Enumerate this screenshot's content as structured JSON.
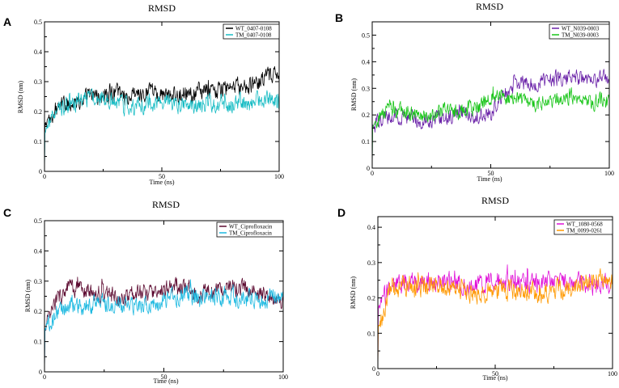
{
  "chart_data": [
    {
      "panel": "A",
      "type": "line",
      "title": "RMSD",
      "xlabel": "Time (ns)",
      "ylabel": "RMSD (nm)",
      "xlim": [
        0,
        100
      ],
      "ylim": [
        0,
        0.5
      ],
      "xticks": [
        0,
        50,
        100
      ],
      "yticks": [
        0,
        0.1,
        0.2,
        0.3,
        0.4,
        0.5
      ],
      "x_tick_labels": [
        "0",
        "50",
        "100"
      ],
      "y_tick_labels": [
        "0",
        "0.1",
        "0.2",
        "0.3",
        "0.4",
        "0.5"
      ],
      "legend_position": "top-right",
      "series": [
        {
          "name": "WT_0407-0108",
          "color": "#000000",
          "x": [
            0,
            5,
            10,
            15,
            20,
            25,
            30,
            35,
            40,
            45,
            50,
            55,
            60,
            65,
            70,
            75,
            80,
            85,
            90,
            95,
            100
          ],
          "values": [
            0.15,
            0.21,
            0.23,
            0.24,
            0.25,
            0.25,
            0.26,
            0.25,
            0.25,
            0.26,
            0.26,
            0.25,
            0.26,
            0.26,
            0.27,
            0.27,
            0.28,
            0.28,
            0.29,
            0.31,
            0.33
          ]
        },
        {
          "name": "TM_0407-0108",
          "color": "#17bcc4",
          "x": [
            0,
            5,
            10,
            15,
            20,
            25,
            30,
            35,
            40,
            45,
            50,
            55,
            60,
            65,
            70,
            75,
            80,
            85,
            90,
            95,
            100
          ],
          "values": [
            0.12,
            0.2,
            0.22,
            0.23,
            0.25,
            0.24,
            0.23,
            0.22,
            0.22,
            0.23,
            0.24,
            0.23,
            0.22,
            0.22,
            0.23,
            0.23,
            0.22,
            0.23,
            0.23,
            0.24,
            0.22
          ]
        }
      ]
    },
    {
      "panel": "B",
      "type": "line",
      "title": "RMSD",
      "xlabel": "Time (ns)",
      "ylabel": "RMSD (nm)",
      "xlim": [
        0,
        100
      ],
      "ylim": [
        0,
        0.55
      ],
      "xticks": [
        0,
        50,
        100
      ],
      "yticks": [
        0,
        0.1,
        0.2,
        0.3,
        0.4,
        0.5
      ],
      "x_tick_labels": [
        "0",
        "50",
        "100"
      ],
      "y_tick_labels": [
        "0",
        "0.1",
        "0.2",
        "0.3",
        "0.4",
        "0.5"
      ],
      "legend_position": "top-right",
      "series": [
        {
          "name": "WT_N039-0003",
          "color": "#6a22a8",
          "x": [
            0,
            5,
            10,
            15,
            20,
            25,
            30,
            35,
            40,
            45,
            50,
            55,
            60,
            65,
            70,
            75,
            80,
            85,
            90,
            95,
            100
          ],
          "values": [
            0.15,
            0.19,
            0.2,
            0.19,
            0.18,
            0.18,
            0.19,
            0.2,
            0.2,
            0.2,
            0.21,
            0.27,
            0.31,
            0.32,
            0.32,
            0.33,
            0.34,
            0.34,
            0.33,
            0.33,
            0.34
          ]
        },
        {
          "name": "TM_N039-0003",
          "color": "#19c519",
          "x": [
            0,
            5,
            10,
            15,
            20,
            25,
            30,
            35,
            40,
            45,
            50,
            55,
            60,
            65,
            70,
            75,
            80,
            85,
            90,
            95,
            100
          ],
          "values": [
            0.16,
            0.21,
            0.22,
            0.21,
            0.2,
            0.2,
            0.21,
            0.21,
            0.22,
            0.23,
            0.26,
            0.27,
            0.26,
            0.25,
            0.24,
            0.25,
            0.26,
            0.27,
            0.26,
            0.25,
            0.25
          ]
        }
      ]
    },
    {
      "panel": "C",
      "type": "line",
      "title": "RMSD",
      "xlabel": "Time (ns)",
      "ylabel": "RMSD (nm)",
      "xlim": [
        0,
        100
      ],
      "ylim": [
        0,
        0.5
      ],
      "xticks": [
        0,
        50,
        100
      ],
      "yticks": [
        0,
        0.1,
        0.2,
        0.3,
        0.4,
        0.5
      ],
      "x_tick_labels": [
        "0",
        "50",
        "100"
      ],
      "y_tick_labels": [
        "0",
        "0.1",
        "0.2",
        "0.3",
        "0.4",
        "0.5"
      ],
      "legend_position": "top-right",
      "series": [
        {
          "name": "WT_Ciprofloxacin",
          "color": "#5c0a30",
          "x": [
            0,
            5,
            10,
            15,
            20,
            25,
            30,
            35,
            40,
            45,
            50,
            55,
            60,
            65,
            70,
            75,
            80,
            85,
            90,
            95,
            100
          ],
          "values": [
            0.14,
            0.24,
            0.28,
            0.27,
            0.26,
            0.26,
            0.25,
            0.25,
            0.26,
            0.26,
            0.27,
            0.28,
            0.27,
            0.26,
            0.27,
            0.28,
            0.28,
            0.27,
            0.26,
            0.25,
            0.24
          ]
        },
        {
          "name": "TM_Ciprofloxacin",
          "color": "#1ab8e0",
          "x": [
            0,
            5,
            10,
            15,
            20,
            25,
            30,
            35,
            40,
            45,
            50,
            55,
            60,
            65,
            70,
            75,
            80,
            85,
            90,
            95,
            100
          ],
          "values": [
            0.13,
            0.2,
            0.21,
            0.22,
            0.22,
            0.23,
            0.22,
            0.22,
            0.22,
            0.23,
            0.24,
            0.25,
            0.25,
            0.24,
            0.25,
            0.25,
            0.24,
            0.24,
            0.23,
            0.25,
            0.26
          ]
        }
      ]
    },
    {
      "panel": "D",
      "type": "line",
      "title": "RMSD",
      "xlabel": "Time (ns)",
      "ylabel": "RMSD (nm)",
      "xlim": [
        0,
        100
      ],
      "ylim": [
        0,
        0.43
      ],
      "xticks": [
        0,
        50,
        100
      ],
      "yticks": [
        0,
        0.1,
        0.2,
        0.3,
        0.4
      ],
      "x_tick_labels": [
        "0",
        "50",
        "100"
      ],
      "y_tick_labels": [
        "0",
        "0.1",
        "0.2",
        "0.3",
        "0.4"
      ],
      "legend_position": "top-right",
      "series": [
        {
          "name": "WT_1080-0568",
          "color": "#e010d8",
          "x": [
            0,
            5,
            10,
            15,
            20,
            25,
            30,
            35,
            40,
            45,
            50,
            55,
            60,
            65,
            70,
            75,
            80,
            85,
            90,
            95,
            100
          ],
          "values": [
            0.16,
            0.23,
            0.24,
            0.24,
            0.25,
            0.24,
            0.24,
            0.24,
            0.23,
            0.24,
            0.25,
            0.24,
            0.24,
            0.24,
            0.24,
            0.25,
            0.24,
            0.24,
            0.24,
            0.24,
            0.24
          ]
        },
        {
          "name": "TM_0099-0261",
          "color": "#ff9900",
          "x": [
            0,
            5,
            10,
            15,
            20,
            25,
            30,
            35,
            40,
            45,
            50,
            55,
            60,
            65,
            70,
            75,
            80,
            85,
            90,
            95,
            100
          ],
          "values": [
            0.12,
            0.22,
            0.23,
            0.22,
            0.23,
            0.23,
            0.22,
            0.22,
            0.21,
            0.22,
            0.22,
            0.22,
            0.22,
            0.22,
            0.21,
            0.22,
            0.23,
            0.24,
            0.24,
            0.25,
            0.26
          ]
        }
      ]
    }
  ]
}
